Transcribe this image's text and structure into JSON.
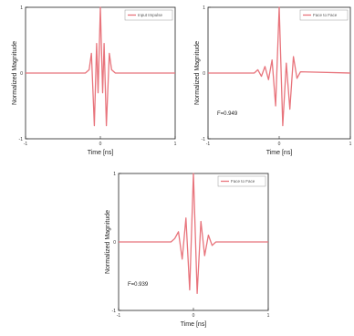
{
  "chart_data": [
    {
      "type": "line",
      "xlabel": "Time [ns]",
      "ylabel": "Normalized Magnitude",
      "xlim": [
        -1,
        1
      ],
      "ylim": [
        -1,
        1
      ],
      "x_ticks": [
        -1,
        0,
        1
      ],
      "grid": false,
      "legend_position": "top-right",
      "annotation": "",
      "series": [
        {
          "name": "Input Impulse",
          "color": "#e8747c",
          "x": [
            -1,
            -0.2,
            -0.15,
            -0.12,
            -0.1,
            -0.08,
            -0.05,
            -0.03,
            0,
            0.03,
            0.05,
            0.08,
            0.1,
            0.12,
            0.15,
            0.2,
            1
          ],
          "y": [
            0,
            0,
            0.05,
            0.3,
            -0.25,
            -0.8,
            0.45,
            -0.3,
            1.0,
            -0.3,
            0.45,
            -0.8,
            -0.25,
            0.3,
            0.05,
            0,
            0
          ]
        }
      ]
    },
    {
      "type": "line",
      "xlabel": "Time [ns]",
      "ylabel": "Normalized Magnitude",
      "xlim": [
        -1,
        1
      ],
      "ylim": [
        -1,
        1
      ],
      "x_ticks": [
        -1,
        0,
        1
      ],
      "grid": false,
      "legend_position": "top-right",
      "annotation": "F=0.949",
      "series": [
        {
          "name": "Face to Face",
          "color": "#e8747c",
          "x": [
            -1,
            -0.35,
            -0.3,
            -0.25,
            -0.2,
            -0.15,
            -0.1,
            -0.05,
            0,
            0.05,
            0.1,
            0.15,
            0.2,
            0.25,
            0.3,
            1
          ],
          "y": [
            0,
            0,
            0.05,
            -0.05,
            0.1,
            -0.1,
            0.2,
            -0.5,
            1.0,
            -0.8,
            0.15,
            -0.55,
            0.25,
            -0.08,
            0.02,
            0
          ]
        }
      ]
    },
    {
      "type": "line",
      "xlabel": "Time [ns]",
      "ylabel": "Normalized Magnitude",
      "xlim": [
        -1,
        1
      ],
      "ylim": [
        -1,
        1
      ],
      "x_ticks": [
        -1,
        0,
        1
      ],
      "grid": false,
      "legend_position": "top-right",
      "annotation": "F=0.939",
      "series": [
        {
          "name": "Face to Face",
          "color": "#e8747c",
          "x": [
            -1,
            -0.3,
            -0.25,
            -0.2,
            -0.15,
            -0.1,
            -0.05,
            0,
            0.05,
            0.1,
            0.15,
            0.2,
            0.25,
            0.3,
            1
          ],
          "y": [
            0,
            0,
            0.05,
            0.15,
            -0.25,
            0.35,
            -0.7,
            1.0,
            -0.75,
            0.3,
            -0.2,
            0.1,
            -0.05,
            0,
            0
          ]
        }
      ]
    }
  ]
}
